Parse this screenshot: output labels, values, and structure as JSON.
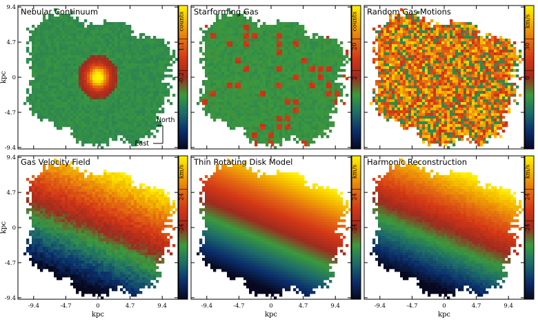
{
  "chart_data": {
    "type": "heatmap",
    "layout": {
      "rows": 2,
      "cols": 3
    },
    "x_axis": {
      "label": "kpc",
      "ticks": [
        -9.4,
        -4.7,
        0,
        4.7,
        9.4
      ],
      "tick_labels": [
        "-9.4",
        "-4.7",
        "0",
        "4.7",
        "9.4"
      ],
      "range": [
        -11.7,
        11.7
      ]
    },
    "y_axis": {
      "label": "kpc",
      "ticks": [
        -9.4,
        -4.7,
        0,
        4.7,
        9.4
      ],
      "tick_labels": [
        "-9.4",
        "-4.7",
        "0",
        "4.7",
        "9.4"
      ],
      "range": [
        -9.6,
        9.6
      ]
    },
    "colormap": [
      "#08081e",
      "#0b2f6c",
      "#1d6b6a",
      "#3a9a3c",
      "#9e2b1e",
      "#d23616",
      "#e46a12",
      "#f3b000",
      "#fff200"
    ],
    "panels": [
      {
        "title": "Nebular Continuum",
        "colorbar": {
          "tick_labels": [
            "-0.2",
            "1.1"
          ],
          "unit": "counts"
        },
        "field": "continuum"
      },
      {
        "title": "Starforming Gas",
        "colorbar": {
          "tick_labels": [
            "2",
            "20"
          ],
          "unit": "counts"
        },
        "field": "clumps"
      },
      {
        "title": "Random Gas Motions",
        "colorbar": {
          "tick_labels": [
            "0",
            "30"
          ],
          "unit": "km/s"
        },
        "field": "dispersion"
      },
      {
        "title": "Gas Velocity Field",
        "colorbar": {
          "tick_labels": [
            "-24",
            "24"
          ],
          "unit": "km/s"
        },
        "field": "velocity"
      },
      {
        "title": "Thin Rotating Disk Model",
        "colorbar": {
          "tick_labels": [
            "-24",
            "24"
          ],
          "unit": "km/s"
        },
        "field": "model"
      },
      {
        "title": "Harmonic Reconstruction",
        "colorbar": {
          "tick_labels": [
            "-24",
            "24"
          ],
          "unit": "km/s"
        },
        "field": "harmonic"
      }
    ],
    "compass": {
      "north_label": "North",
      "east_label": "East",
      "panel": 0
    },
    "grid": false
  }
}
